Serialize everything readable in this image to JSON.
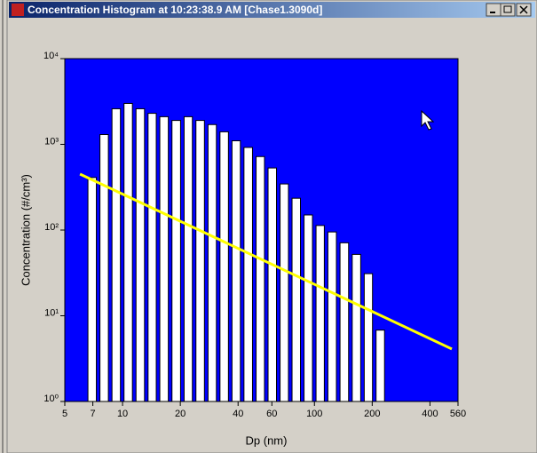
{
  "window": {
    "title": "Concentration Histogram at 10:23:38.9 AM  [Chase1.3090d]"
  },
  "chart_data": {
    "type": "histogram",
    "xlabel": "Dp (nm)",
    "ylabel": "Concentration (#/cm³)",
    "xscale": "log",
    "yscale": "log",
    "bins": [
      6.46,
      7.46,
      8.62,
      9.96,
      11.5,
      13.3,
      15.3,
      17.7,
      20.5,
      23.6,
      27.3,
      31.5,
      36.4,
      42.0,
      48.6,
      56.1,
      64.8,
      74.8,
      86.4,
      99.8,
      115,
      133,
      154,
      178,
      205,
      237
    ],
    "values": [
      410,
      1300,
      2600,
      3000,
      2600,
      2300,
      2100,
      1900,
      2100,
      1900,
      1700,
      1400,
      1100,
      920,
      720,
      530,
      345,
      235,
      150,
      113,
      95,
      71,
      52,
      31,
      6.8
    ],
    "color": "#ffffff",
    "background": "#0000ff",
    "fit": {
      "x": [
        6,
        520
      ],
      "values": [
        450,
        4.1
      ],
      "color": "#ffff00"
    },
    "xlim": [
      5,
      560
    ],
    "ylim": [
      1,
      10000
    ],
    "xticks": [
      5,
      7,
      10,
      20,
      40,
      60,
      100,
      200,
      400,
      560
    ],
    "yticks": [
      {
        "value": 1,
        "label": "10⁰"
      },
      {
        "value": 10,
        "label": "10¹"
      },
      {
        "value": 100,
        "label": "10²"
      },
      {
        "value": 1000,
        "label": "10³"
      },
      {
        "value": 10000,
        "label": "10⁴"
      }
    ]
  }
}
